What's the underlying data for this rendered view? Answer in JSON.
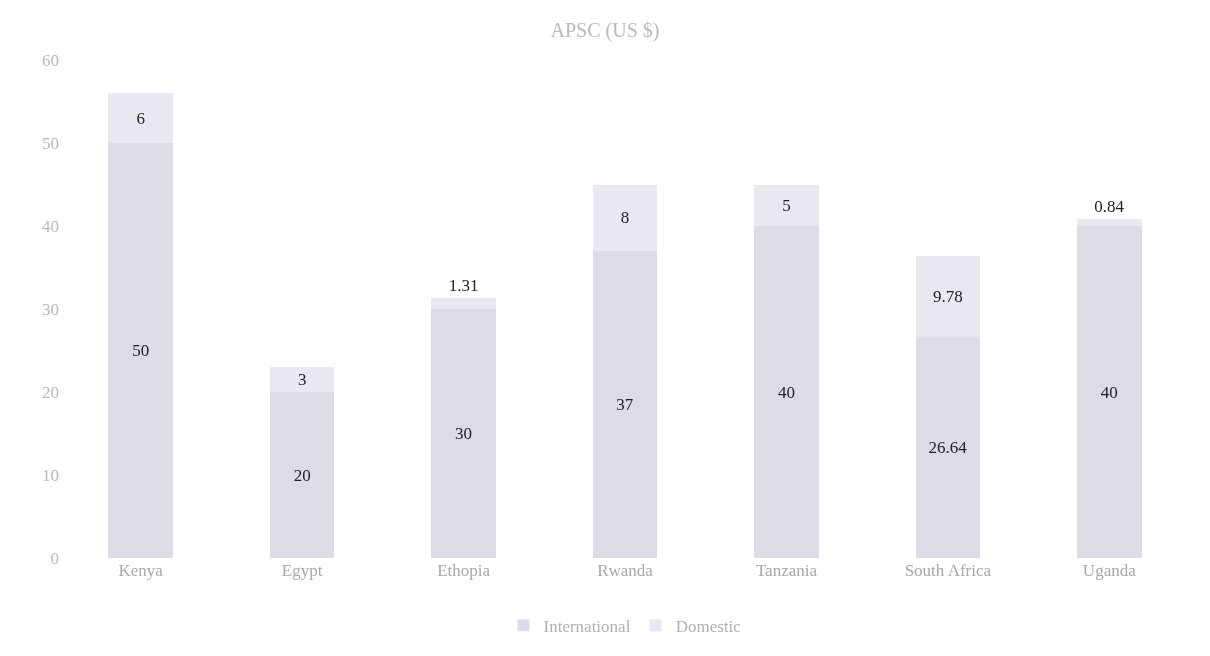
{
  "chart_data": {
    "type": "bar",
    "title": "APSC (US $)",
    "stacked": true,
    "data_labels": true,
    "legend": "bottom",
    "grid": false,
    "categories": [
      "Kenya",
      "Egypt",
      "Ethopia",
      "Rwanda",
      "Tanzania",
      "South Africa",
      "Uganda"
    ],
    "series": [
      {
        "name": "International",
        "color": "#dcdce6",
        "values": [
          50,
          20,
          30,
          37,
          40,
          26.64,
          40
        ]
      },
      {
        "name": "Domestic",
        "color": "#e8e8f0",
        "values": [
          6,
          3,
          1.31,
          8,
          5,
          9.78,
          0.84
        ]
      }
    ],
    "ylim": [
      0,
      60
    ],
    "yticks": [
      0,
      10,
      20,
      30,
      40,
      50,
      60
    ]
  }
}
